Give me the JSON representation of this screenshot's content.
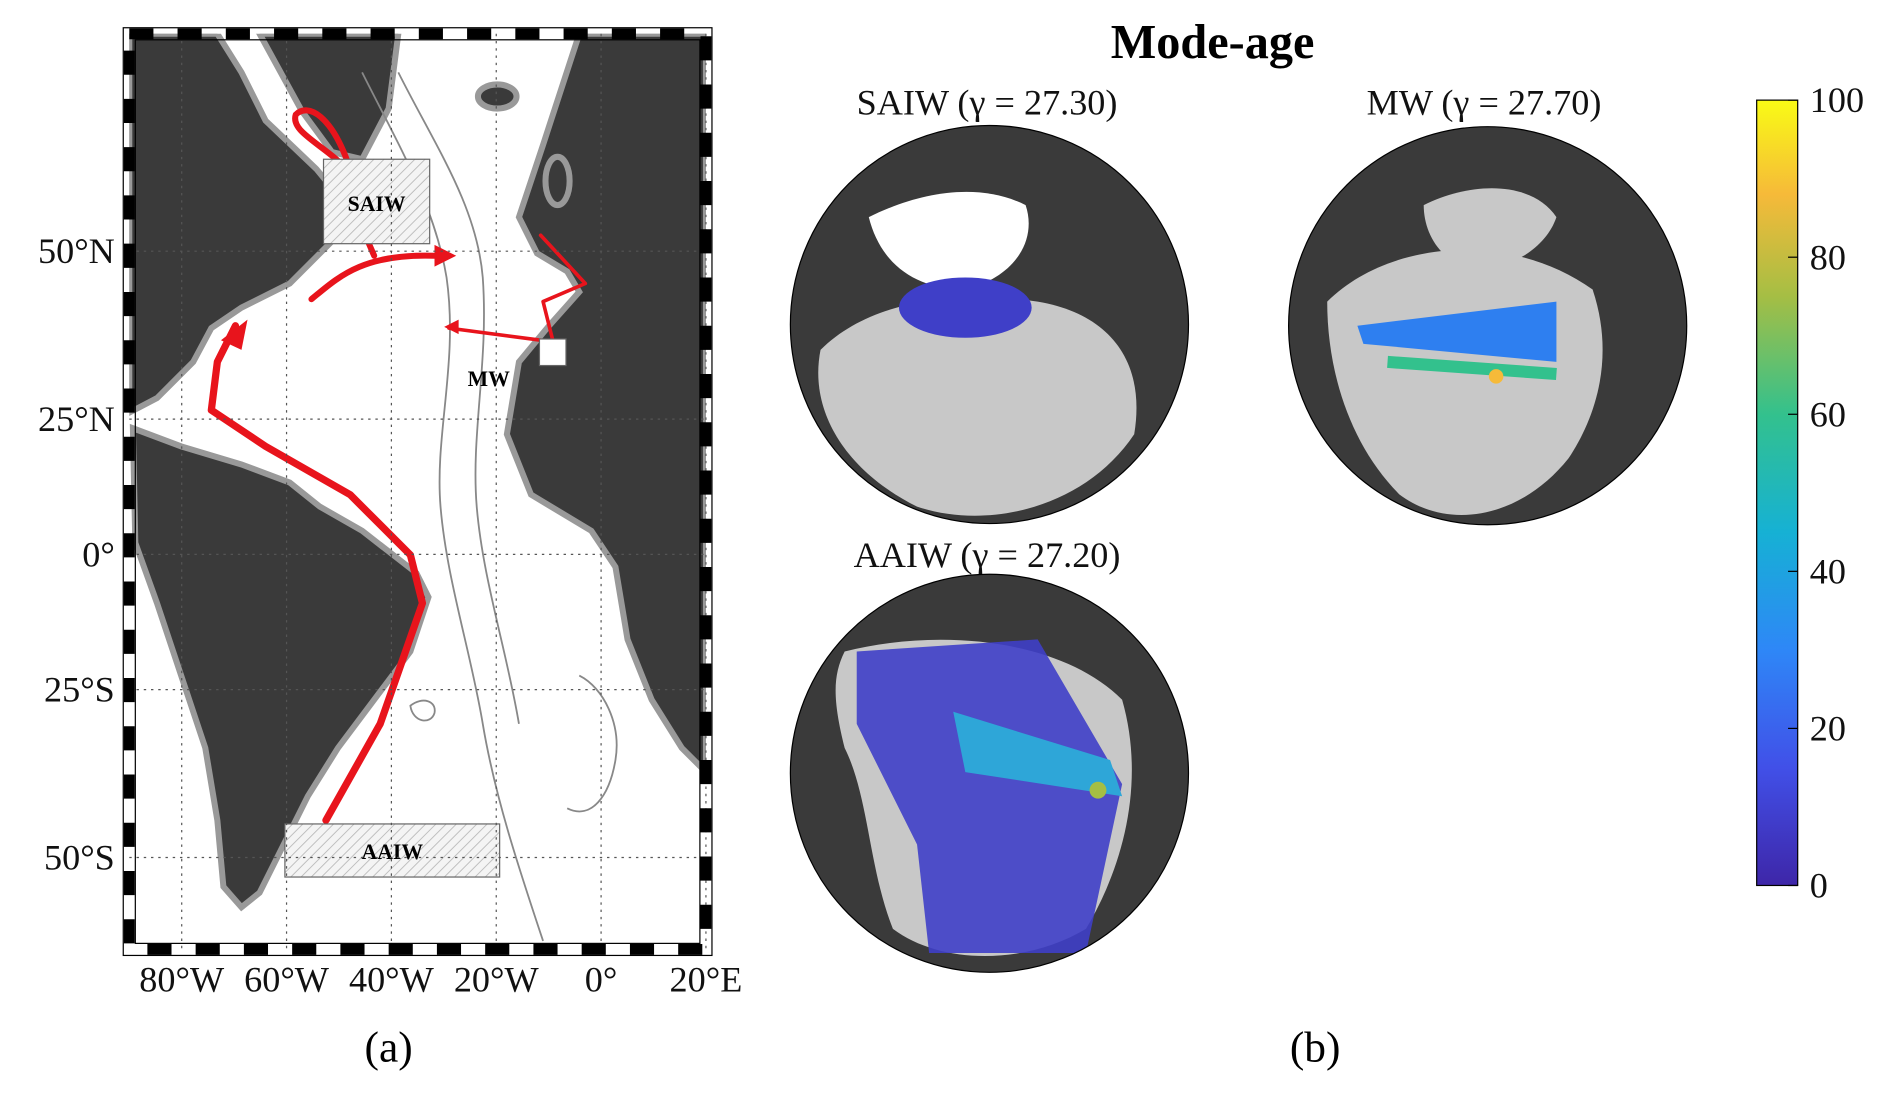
{
  "title": "Mode-age",
  "panel_a": {
    "label": "(a)",
    "xlim": [
      -90,
      20
    ],
    "ylim": [
      -60,
      70
    ],
    "xticks": [
      {
        "value": -80,
        "label": "80°W"
      },
      {
        "value": -60,
        "label": "60°W"
      },
      {
        "value": -40,
        "label": "40°W"
      },
      {
        "value": -20,
        "label": "20°W"
      },
      {
        "value": 0,
        "label": "0°"
      },
      {
        "value": 20,
        "label": "20°E"
      }
    ],
    "yticks": [
      {
        "value": 50,
        "label": "50°N"
      },
      {
        "value": 25,
        "label": "25°N"
      },
      {
        "value": 0,
        "label": "0°"
      },
      {
        "value": -25,
        "label": "25°S"
      },
      {
        "value": -50,
        "label": "50°S"
      }
    ],
    "regions": [
      "SAIW",
      "MW",
      "AAIW"
    ]
  },
  "panel_b": {
    "label": "(b)",
    "globes": [
      "SAIW (γ = 27.30)",
      "MW (γ = 27.70)",
      "AAIW (γ = 27.20)"
    ],
    "colorbar": {
      "lim": [
        0,
        100
      ],
      "ticks": [
        0,
        20,
        40,
        60,
        80,
        100
      ]
    }
  }
}
